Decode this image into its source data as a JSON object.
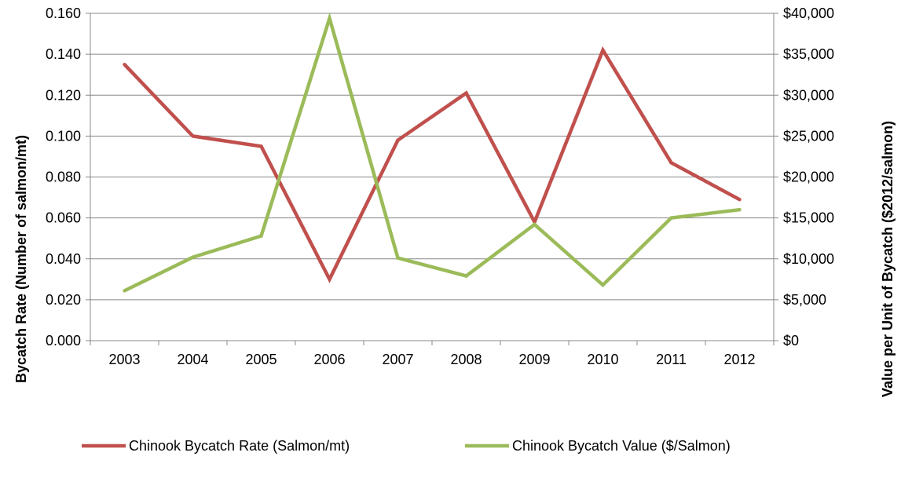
{
  "chart_data": {
    "type": "line",
    "title": "",
    "categories": [
      "2003",
      "2004",
      "2005",
      "2006",
      "2007",
      "2008",
      "2009",
      "2010",
      "2011",
      "2012"
    ],
    "y_axis_left": {
      "label": "Bycatch Rate (Number of salmon/mt)",
      "range": [
        0,
        0.16
      ],
      "ticks": [
        "0.000",
        "0.020",
        "0.040",
        "0.060",
        "0.080",
        "0.100",
        "0.120",
        "0.140",
        "0.160"
      ]
    },
    "y_axis_right": {
      "label": "Value per Unit of Bycatch ($2012/salmon)",
      "range": [
        0,
        40000
      ],
      "ticks": [
        "$0",
        "$5,000",
        "$10,000",
        "$15,000",
        "$20,000",
        "$25,000",
        "$30,000",
        "$35,000",
        "$40,000"
      ]
    },
    "series": [
      {
        "name": "Chinook Bycatch Rate (Salmon/mt)",
        "axis": "left",
        "color": "#c0504d",
        "values": [
          0.135,
          0.1,
          0.095,
          0.03,
          0.098,
          0.121,
          0.058,
          0.142,
          0.087,
          0.069
        ]
      },
      {
        "name": "Chinook Bycatch Value ($/Salmon)",
        "axis": "right",
        "color": "#9bbb59",
        "values": [
          6100,
          10200,
          12800,
          39400,
          10100,
          7900,
          14200,
          6800,
          15000,
          16000
        ]
      }
    ],
    "grid": true,
    "legend_position": "bottom"
  }
}
